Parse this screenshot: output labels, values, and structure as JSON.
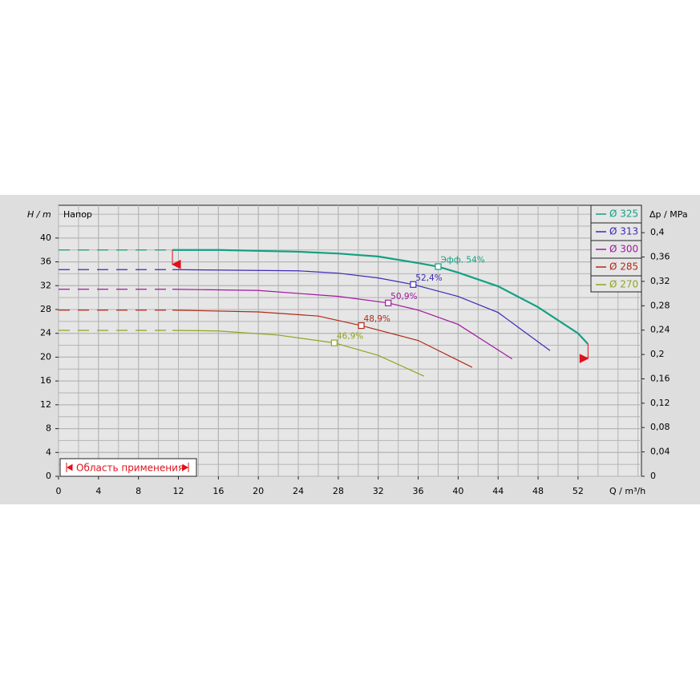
{
  "chart_data": {
    "type": "line",
    "y_label": "H / m",
    "y_title": "Напор",
    "y2_label": "Δp / MPa",
    "x_label": "Q / m³/h",
    "annotation": "Область применения",
    "xlim": [
      0,
      58.35
    ],
    "xticks": [
      0,
      4,
      8,
      12,
      16,
      20,
      24,
      28,
      32,
      36,
      40,
      44,
      48,
      52
    ],
    "ylim": [
      0,
      45.5
    ],
    "yticks": [
      0,
      4,
      8,
      12,
      16,
      20,
      24,
      28,
      32,
      36,
      40
    ],
    "y2lim": [
      0,
      0.445
    ],
    "y2ticks": [
      0,
      {
        "value": 0.04,
        "label": "0,04"
      },
      {
        "value": 0.08,
        "label": "0,08"
      },
      {
        "value": 0.12,
        "label": "0,12"
      },
      {
        "value": 0.16,
        "label": "0,16"
      },
      {
        "value": 0.2,
        "label": "0,2"
      },
      {
        "value": 0.24,
        "label": "0,24"
      },
      {
        "value": 0.28,
        "label": "0,28"
      },
      {
        "value": 0.32,
        "label": "0,32"
      },
      {
        "value": 0.36,
        "label": "0,36"
      },
      {
        "value": 0.4,
        "label": "0,4"
      }
    ],
    "grid": true,
    "legend_position": "top-right",
    "series": [
      {
        "name": "Ø 325",
        "color": "#14a083",
        "dashed_x": [
          0,
          11.4
        ],
        "dashed_values": [
          38,
          38
        ],
        "x": [
          11.4,
          16,
          24,
          28,
          32,
          36,
          38,
          40,
          44,
          48,
          52,
          53
        ],
        "values": [
          38,
          38,
          37.7,
          37.4,
          36.9,
          35.8,
          35.2,
          34.2,
          31.9,
          28.4,
          24,
          22.2
        ],
        "point": {
          "x": 38,
          "y": 35.2,
          "label": "Эфф.  54%"
        }
      },
      {
        "name": "Ø 313",
        "color": "#3d2bb5",
        "dashed_x": [
          0,
          11.4
        ],
        "dashed_values": [
          34.7,
          34.7
        ],
        "x": [
          11.4,
          24,
          28,
          32,
          35.5,
          40,
          44,
          49.2
        ],
        "values": [
          34.7,
          34.5,
          34.1,
          33.3,
          32.2,
          30.2,
          27.5,
          21.1
        ],
        "point": {
          "x": 35.5,
          "y": 32.2,
          "label": "52,4%"
        }
      },
      {
        "name": "Ø 300",
        "color": "#a0189e",
        "dashed_x": [
          0,
          11.4
        ],
        "dashed_values": [
          31.4,
          31.4
        ],
        "x": [
          11.4,
          20,
          28,
          33,
          36,
          40,
          45.4
        ],
        "values": [
          31.4,
          31.2,
          30.2,
          29.1,
          27.9,
          25.5,
          19.7
        ],
        "point": {
          "x": 33,
          "y": 29.1,
          "label": "50,9%"
        }
      },
      {
        "name": "Ø 285",
        "color": "#b02a18",
        "dashed_x": [
          0,
          11.4
        ],
        "dashed_values": [
          27.9,
          27.9
        ],
        "x": [
          11.4,
          20,
          26,
          30.3,
          36,
          41.4
        ],
        "values": [
          27.9,
          27.6,
          26.9,
          25.3,
          22.8,
          18.3
        ],
        "point": {
          "x": 30.3,
          "y": 25.3,
          "label": "48,9%"
        }
      },
      {
        "name": "Ø 270",
        "color": "#8fa521",
        "dashed_x": [
          0,
          11.4
        ],
        "dashed_values": [
          24.5,
          24.5
        ],
        "x": [
          11.4,
          16,
          22,
          27.6,
          32,
          36.6
        ],
        "values": [
          24.5,
          24.4,
          23.7,
          22.4,
          20.3,
          16.8
        ],
        "point": {
          "x": 27.6,
          "y": 22.4,
          "label": "46,9%"
        }
      }
    ]
  }
}
